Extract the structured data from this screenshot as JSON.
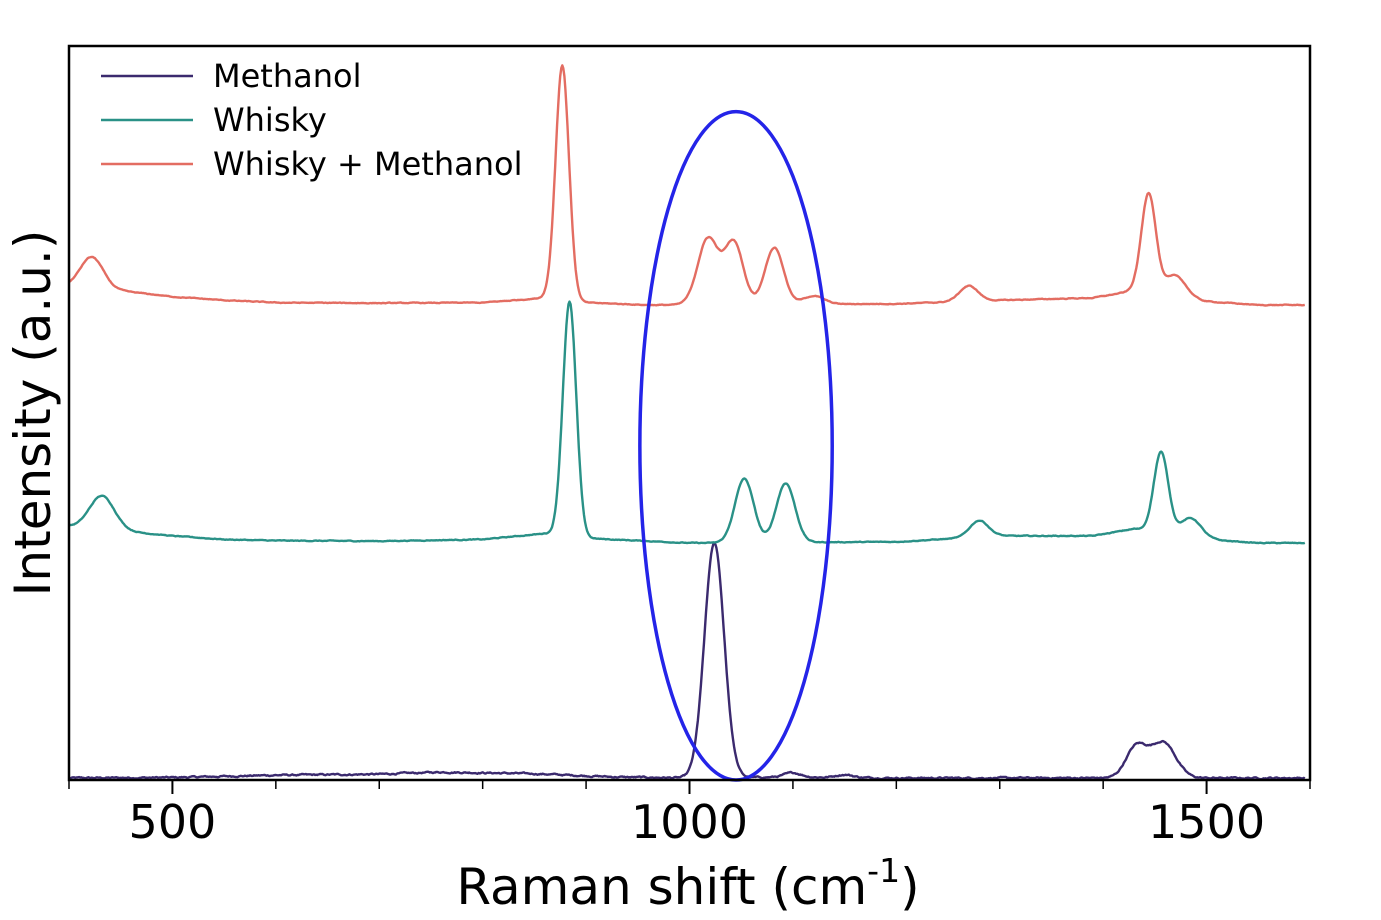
{
  "chart_data": {
    "type": "line",
    "xlabel": "Raman shift (cm",
    "xlabel_sup": "-1",
    "xlabel_end": ")",
    "ylabel": "Intensity (a.u.)",
    "xlim": [
      400,
      1600
    ],
    "x_ticks_major": [
      500,
      1000,
      1500
    ],
    "x_tick_labels": [
      "500",
      "1000",
      "1500"
    ],
    "x_ticks_minor": [
      400,
      600,
      700,
      800,
      900,
      1100,
      1200,
      1300,
      1400,
      1600
    ],
    "y_ticks_shown": false,
    "legend_position": "top-left",
    "series": [
      {
        "name": "Methanol",
        "color": "#3b2a6e",
        "baseline": 0.0,
        "noise": 0.008,
        "base_points": [
          [
            400,
            0.0
          ],
          [
            500,
            0.002
          ],
          [
            600,
            0.012
          ],
          [
            700,
            0.016
          ],
          [
            760,
            0.025
          ],
          [
            850,
            0.018
          ],
          [
            930,
            0.004
          ],
          [
            1000,
            0.0
          ],
          [
            1100,
            0.004
          ],
          [
            1200,
            0.0
          ],
          [
            1600,
            0.0
          ]
        ],
        "peaks": [
          {
            "center": 1024,
            "height": 0.99,
            "width": 9.5
          },
          {
            "center": 1100,
            "height": 0.018,
            "width": 8
          },
          {
            "center": 1150,
            "height": 0.012,
            "width": 8
          },
          {
            "center": 1432,
            "height": 0.13,
            "width": 10
          },
          {
            "center": 1458,
            "height": 0.15,
            "width": 12
          }
        ]
      },
      {
        "name": "Whisky",
        "color": "#2a9187",
        "baseline": 1.0,
        "noise": 0.004,
        "base_points": [
          [
            400,
            0.07
          ],
          [
            430,
            0.06
          ],
          [
            500,
            0.03
          ],
          [
            550,
            0.015
          ],
          [
            600,
            0.01
          ],
          [
            700,
            0.008
          ],
          [
            800,
            0.015
          ],
          [
            860,
            0.04
          ],
          [
            900,
            0.02
          ],
          [
            950,
            0.01
          ],
          [
            1000,
            0.0
          ],
          [
            1200,
            0.005
          ],
          [
            1300,
            0.03
          ],
          [
            1390,
            0.03
          ],
          [
            1430,
            0.06
          ],
          [
            1500,
            0.015
          ],
          [
            1550,
            0.0
          ],
          [
            1600,
            0.0
          ]
        ],
        "peaks": [
          {
            "center": 432,
            "height": 0.14,
            "width": 12
          },
          {
            "center": 884,
            "height": 0.99,
            "width": 6.5
          },
          {
            "center": 1053,
            "height": 0.27,
            "width": 9
          },
          {
            "center": 1093,
            "height": 0.25,
            "width": 9
          },
          {
            "center": 1280,
            "height": 0.07,
            "width": 9
          },
          {
            "center": 1456,
            "height": 0.34,
            "width": 7
          },
          {
            "center": 1485,
            "height": 0.08,
            "width": 10
          }
        ]
      },
      {
        "name": "Whisky + Methanol",
        "color": "#e36d62",
        "baseline": 2.0,
        "noise": 0.004,
        "base_points": [
          [
            400,
            0.08
          ],
          [
            430,
            0.07
          ],
          [
            500,
            0.035
          ],
          [
            550,
            0.02
          ],
          [
            600,
            0.01
          ],
          [
            700,
            0.008
          ],
          [
            800,
            0.01
          ],
          [
            860,
            0.03
          ],
          [
            900,
            0.01
          ],
          [
            960,
            0.0
          ],
          [
            1200,
            0.005
          ],
          [
            1300,
            0.02
          ],
          [
            1390,
            0.03
          ],
          [
            1430,
            0.06
          ],
          [
            1500,
            0.015
          ],
          [
            1550,
            0.0
          ],
          [
            1600,
            0.0
          ]
        ],
        "peaks": [
          {
            "center": 422,
            "height": 0.13,
            "width": 11
          },
          {
            "center": 877,
            "height": 0.99,
            "width": 6.5
          },
          {
            "center": 1018,
            "height": 0.28,
            "width": 10
          },
          {
            "center": 1043,
            "height": 0.26,
            "width": 9
          },
          {
            "center": 1082,
            "height": 0.24,
            "width": 9
          },
          {
            "center": 1120,
            "height": 0.035,
            "width": 10
          },
          {
            "center": 1270,
            "height": 0.065,
            "width": 9
          },
          {
            "center": 1444,
            "height": 0.42,
            "width": 7
          },
          {
            "center": 1470,
            "height": 0.09,
            "width": 10
          }
        ]
      }
    ],
    "annotations": [
      {
        "type": "ellipse",
        "color": "#2424e8",
        "cx": 1045,
        "cy": 1.41,
        "rx": 93,
        "ry": 1.41
      }
    ]
  }
}
